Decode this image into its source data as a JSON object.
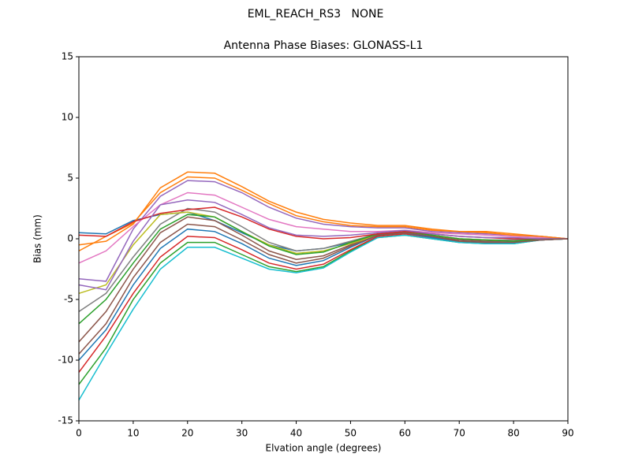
{
  "chart_data": {
    "type": "line",
    "suptitle": "EML_REACH_RS3   NONE",
    "title": "Antenna Phase Biases: GLONASS-L1",
    "xlabel": "Elvation angle (degrees)",
    "ylabel": "Bias (mm)",
    "x": [
      0,
      5,
      10,
      15,
      20,
      25,
      30,
      35,
      40,
      45,
      50,
      55,
      60,
      65,
      70,
      75,
      80,
      85,
      90
    ],
    "xlim": [
      0,
      90
    ],
    "xticks": [
      0,
      10,
      20,
      30,
      40,
      50,
      60,
      70,
      80,
      90
    ],
    "ylim": [
      -15,
      15
    ],
    "yticks": [
      -15,
      -10,
      -5,
      0,
      5,
      10,
      15
    ],
    "series": [
      {
        "color": "#1f77b4",
        "values": [
          0.5,
          0.4,
          1.5,
          2.0,
          2.2,
          1.5,
          0.5,
          -0.5,
          -1.0,
          -0.8,
          -0.3,
          0.3,
          0.5,
          0.2,
          -0.2,
          -0.3,
          -0.3,
          -0.1,
          0
        ]
      },
      {
        "color": "#ff7f0e",
        "values": [
          -0.5,
          -0.2,
          1.2,
          4.2,
          5.5,
          5.4,
          4.3,
          3.1,
          2.2,
          1.6,
          1.3,
          1.1,
          1.1,
          0.8,
          0.6,
          0.6,
          0.4,
          0.2,
          0
        ]
      },
      {
        "color": "#2ca02c",
        "values": [
          -12,
          -9,
          -5,
          -2,
          -0.3,
          -0.3,
          -1.3,
          -2.3,
          -2.7,
          -2.3,
          -1.0,
          0.1,
          0.3,
          0,
          -0.3,
          -0.4,
          -0.4,
          -0.1,
          0
        ]
      },
      {
        "color": "#d62728",
        "values": [
          -11,
          -8,
          -4.5,
          -1.5,
          0.2,
          0.1,
          -0.9,
          -2.0,
          -2.5,
          -2.1,
          -0.9,
          0.2,
          0.4,
          0.1,
          -0.2,
          -0.3,
          -0.3,
          -0.1,
          0
        ]
      },
      {
        "color": "#9467bd",
        "values": [
          -3.3,
          -3.5,
          0.8,
          3.5,
          4.8,
          4.7,
          3.8,
          2.6,
          1.7,
          1.2,
          1.0,
          0.9,
          0.9,
          0.6,
          0.5,
          0.4,
          0.3,
          0.2,
          0
        ]
      },
      {
        "color": "#8c564b",
        "values": [
          -8.5,
          -6,
          -2.5,
          0.5,
          1.8,
          1.5,
          0.3,
          -1.0,
          -1.7,
          -1.4,
          -0.5,
          0.4,
          0.5,
          0.2,
          -0.1,
          -0.2,
          -0.2,
          0,
          0
        ]
      },
      {
        "color": "#e377c2",
        "values": [
          -2,
          -1,
          1.0,
          2.8,
          3.8,
          3.6,
          2.6,
          1.6,
          1.0,
          0.8,
          0.6,
          0.6,
          0.7,
          0.5,
          0.4,
          0.3,
          0.2,
          0.1,
          0
        ]
      },
      {
        "color": "#7f7f7f",
        "values": [
          -6,
          -4.5,
          -1.5,
          1.2,
          2.5,
          2.2,
          1.0,
          -0.3,
          -1.0,
          -0.8,
          -0.2,
          0.4,
          0.6,
          0.3,
          0.0,
          -0.1,
          -0.1,
          0,
          0
        ]
      },
      {
        "color": "#bcbd22",
        "values": [
          -4.5,
          -3.8,
          -0.5,
          2.0,
          2.2,
          1.8,
          0.6,
          -0.5,
          -1.2,
          -1.0,
          -0.4,
          0.3,
          0.5,
          0.3,
          0,
          -0.1,
          -0.2,
          0,
          0
        ]
      },
      {
        "color": "#17becf",
        "values": [
          -13.3,
          -9.5,
          -5.8,
          -2.5,
          -0.7,
          -0.7,
          -1.6,
          -2.5,
          -2.8,
          -2.4,
          -1.1,
          0.1,
          0.3,
          0,
          -0.3,
          -0.4,
          -0.4,
          -0.1,
          0
        ]
      },
      {
        "color": "#1f77b4",
        "values": [
          -10,
          -7.5,
          -3.8,
          -0.8,
          0.8,
          0.6,
          -0.4,
          -1.6,
          -2.2,
          -1.8,
          -0.7,
          0.3,
          0.5,
          0.1,
          -0.2,
          -0.3,
          -0.3,
          -0.1,
          0
        ]
      },
      {
        "color": "#ff7f0e",
        "values": [
          -1,
          0.2,
          1.3,
          3.8,
          5.1,
          5.0,
          4.0,
          2.9,
          1.9,
          1.4,
          1.1,
          1.0,
          1.0,
          0.7,
          0.6,
          0.5,
          0.3,
          0.2,
          0
        ]
      },
      {
        "color": "#2ca02c",
        "values": [
          -7,
          -5,
          -2,
          0.8,
          2.0,
          1.8,
          0.6,
          -0.6,
          -1.3,
          -1.1,
          -0.3,
          0.4,
          0.6,
          0.3,
          0,
          -0.1,
          -0.2,
          0,
          0
        ]
      },
      {
        "color": "#d62728",
        "values": [
          0.3,
          0.2,
          1.4,
          2.1,
          2.4,
          2.6,
          1.8,
          0.8,
          0.2,
          0.0,
          0.1,
          0.4,
          0.6,
          0.4,
          0.2,
          0.1,
          0,
          0,
          0
        ]
      },
      {
        "color": "#9467bd",
        "values": [
          -3.8,
          -4.2,
          -0.2,
          2.8,
          3.2,
          3.0,
          2.0,
          0.9,
          0.3,
          0.2,
          0.3,
          0.5,
          0.7,
          0.4,
          0.2,
          0.1,
          0.1,
          0,
          0
        ]
      },
      {
        "color": "#8c564b",
        "values": [
          -9.5,
          -7,
          -3.2,
          -0.3,
          1.2,
          1.0,
          -0.1,
          -1.3,
          -2.0,
          -1.6,
          -0.6,
          0.3,
          0.5,
          0.2,
          -0.2,
          -0.3,
          -0.3,
          -0.1,
          0
        ]
      }
    ]
  }
}
